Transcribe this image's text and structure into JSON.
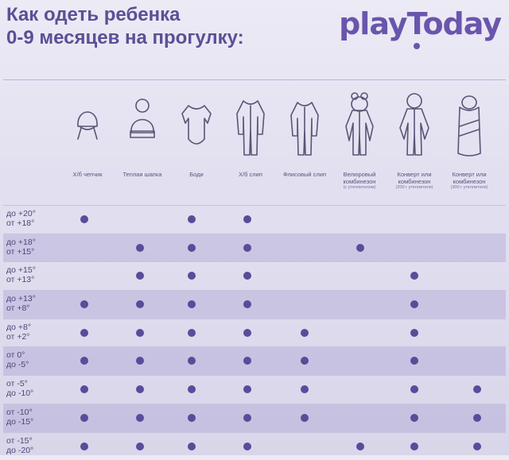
{
  "title": {
    "line1": "Как одеть ребенка",
    "line2": "0-9 месяцев на прогулку:"
  },
  "brand": "playToday",
  "columns": [
    {
      "label": "Х/б чепчик",
      "sub": "",
      "icon": "bonnet-icon"
    },
    {
      "label": "Теплая шапка",
      "sub": "",
      "icon": "warm-hat-icon"
    },
    {
      "label": "Боди",
      "sub": "",
      "icon": "bodysuit-icon"
    },
    {
      "label": "Х/б слип",
      "sub": "",
      "icon": "cotton-sleepsuit-icon"
    },
    {
      "label": "Флисовый слип",
      "sub": "",
      "icon": "fleece-sleepsuit-icon"
    },
    {
      "label": "Велюровый комбинезон",
      "sub": "(с утеплителем)",
      "icon": "velour-jumpsuit-icon"
    },
    {
      "label": "Конверт или комбинезон",
      "sub": "(200 г утеплителя)",
      "icon": "insulated-jumpsuit-icon"
    },
    {
      "label": "Конверт или комбинезон",
      "sub": "(300 г утеплителя)",
      "icon": "envelope-icon"
    }
  ],
  "rows": [
    {
      "line1": "до +20°",
      "line2": "от +18°",
      "marks": [
        1,
        0,
        1,
        1,
        0,
        0,
        0,
        0
      ]
    },
    {
      "line1": "до +18°",
      "line2": "от +15°",
      "marks": [
        0,
        1,
        1,
        1,
        0,
        1,
        0,
        0
      ]
    },
    {
      "line1": "до +15°",
      "line2": "от +13°",
      "marks": [
        0,
        1,
        1,
        1,
        0,
        0,
        1,
        0
      ]
    },
    {
      "line1": "до +13°",
      "line2": "от +8°",
      "marks": [
        1,
        1,
        1,
        1,
        0,
        0,
        1,
        0
      ]
    },
    {
      "line1": "до +8°",
      "line2": "от +2°",
      "marks": [
        1,
        1,
        1,
        1,
        1,
        0,
        1,
        0
      ]
    },
    {
      "line1": "от 0°",
      "line2": "до -5°",
      "marks": [
        1,
        1,
        1,
        1,
        1,
        0,
        1,
        0
      ]
    },
    {
      "line1": "от -5°",
      "line2": "до -10°",
      "marks": [
        1,
        1,
        1,
        1,
        1,
        0,
        1,
        1
      ]
    },
    {
      "line1": "от -10°",
      "line2": "до -15°",
      "marks": [
        1,
        1,
        1,
        1,
        1,
        0,
        1,
        1
      ]
    },
    {
      "line1": "от -15°",
      "line2": "до -20°",
      "marks": [
        1,
        1,
        1,
        1,
        0,
        1,
        1,
        1
      ]
    }
  ],
  "colors": {
    "accent": "#5c4a9a",
    "title": "#5c4f95",
    "shade": "#b3aad8"
  }
}
